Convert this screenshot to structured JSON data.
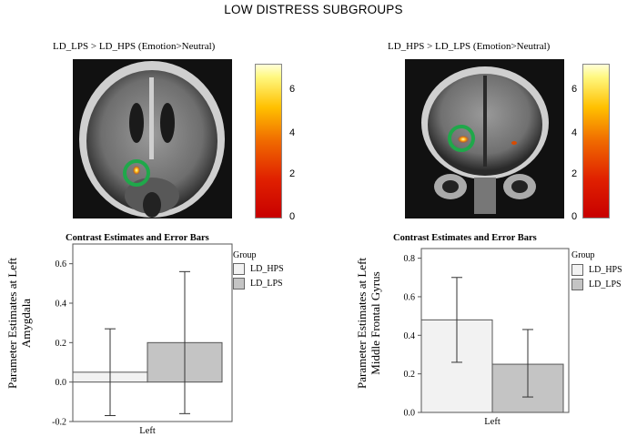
{
  "main_title": "LOW DISTRESS SUBGROUPS",
  "left_panel": {
    "title": "LD_LPS > LD_HPS (Emotion>Neutral)",
    "colorbar_ticks": [
      "6",
      "4",
      "2",
      "0"
    ],
    "chart_title": "Contrast Estimates and Error Bars",
    "ylabel_line1": "Parameter  Estimates  at Left",
    "ylabel_line2": "Amygdala",
    "legend_title": "Group",
    "legend": [
      "LD_HPS",
      "LD_LPS"
    ]
  },
  "right_panel": {
    "title": "LD_HPS > LD_LPS (Emotion>Neutral)",
    "colorbar_ticks": [
      "6",
      "4",
      "2",
      "0"
    ],
    "chart_title": "Contrast Estimates and Error Bars",
    "ylabel_line1": "Parameter  Estimates  at Left",
    "ylabel_line2": "Middle  Frontal  Gyrus",
    "legend_title": "Group",
    "legend": [
      "LD_HPS",
      "LD_LPS"
    ]
  },
  "chart_data": [
    {
      "type": "bar",
      "title": "Contrast Estimates and Error Bars",
      "ylabel": "Parameter  Estimates  at Left Amygdala",
      "categories": [
        "Left"
      ],
      "series": [
        {
          "name": "LD_HPS",
          "values": [
            0.05
          ],
          "error_low": [
            -0.17
          ],
          "error_high": [
            0.27
          ]
        },
        {
          "name": "LD_LPS",
          "values": [
            0.2
          ],
          "error_low": [
            -0.16
          ],
          "error_high": [
            0.56
          ]
        }
      ],
      "ylim": [
        -0.2,
        0.7
      ],
      "yticks": [
        "-0.2",
        "0.0",
        "0.2",
        "0.4",
        "0.6"
      ],
      "legend": "right"
    },
    {
      "type": "bar",
      "title": "Contrast Estimates and Error Bars",
      "ylabel": "Parameter  Estimates  at Left Middle  Frontal  Gyrus",
      "categories": [
        "Left"
      ],
      "series": [
        {
          "name": "LD_HPS",
          "values": [
            0.48
          ],
          "error_low": [
            0.26
          ],
          "error_high": [
            0.7
          ]
        },
        {
          "name": "LD_LPS",
          "values": [
            0.25
          ],
          "error_low": [
            0.08
          ],
          "error_high": [
            0.43
          ]
        }
      ],
      "ylim": [
        0.0,
        0.85
      ],
      "yticks": [
        "0.0",
        "0.2",
        "0.4",
        "0.6",
        "0.8"
      ],
      "legend": "right"
    }
  ],
  "colors": {
    "ring": "#1fa84a",
    "hps_fill": "#f2f2f2",
    "lps_fill": "#c4c4c4"
  }
}
